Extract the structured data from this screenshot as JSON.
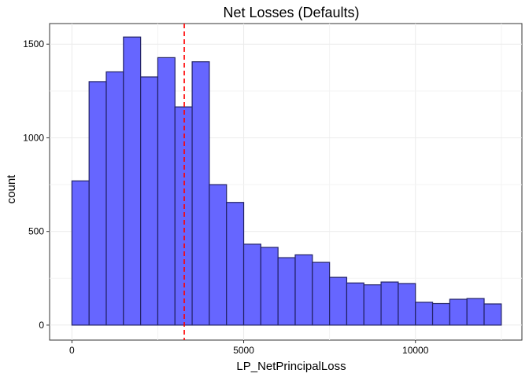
{
  "chart_data": {
    "type": "bar",
    "title": "Net Losses (Defaults)",
    "xlabel": "LP_NetPrincipalLoss",
    "ylabel": "count",
    "xlim": [
      -650,
      13100
    ],
    "ylim": [
      -80,
      1610
    ],
    "x_ticks": [
      0,
      5000,
      10000
    ],
    "x_tick_labels": [
      "0",
      "5000",
      "10000"
    ],
    "y_ticks": [
      0,
      500,
      1000,
      1500
    ],
    "y_tick_labels": [
      "0",
      "500",
      "1000",
      "1500"
    ],
    "bin_width": 500,
    "bins": [
      {
        "start": 0,
        "end": 500,
        "count": 770
      },
      {
        "start": 500,
        "end": 1000,
        "count": 1300
      },
      {
        "start": 1000,
        "end": 1500,
        "count": 1352
      },
      {
        "start": 1500,
        "end": 2000,
        "count": 1538
      },
      {
        "start": 2000,
        "end": 2500,
        "count": 1325
      },
      {
        "start": 2500,
        "end": 3000,
        "count": 1428
      },
      {
        "start": 3000,
        "end": 3500,
        "count": 1165
      },
      {
        "start": 3500,
        "end": 4000,
        "count": 1406
      },
      {
        "start": 4000,
        "end": 4500,
        "count": 750
      },
      {
        "start": 4500,
        "end": 5000,
        "count": 655
      },
      {
        "start": 5000,
        "end": 5500,
        "count": 432
      },
      {
        "start": 5500,
        "end": 6000,
        "count": 415
      },
      {
        "start": 6000,
        "end": 6500,
        "count": 360
      },
      {
        "start": 6500,
        "end": 7000,
        "count": 375
      },
      {
        "start": 7000,
        "end": 7500,
        "count": 335
      },
      {
        "start": 7500,
        "end": 8000,
        "count": 255
      },
      {
        "start": 8000,
        "end": 8500,
        "count": 225
      },
      {
        "start": 8500,
        "end": 9000,
        "count": 215
      },
      {
        "start": 9000,
        "end": 9500,
        "count": 230
      },
      {
        "start": 9500,
        "end": 10000,
        "count": 222
      },
      {
        "start": 10000,
        "end": 10500,
        "count": 122
      },
      {
        "start": 10500,
        "end": 11000,
        "count": 115
      },
      {
        "start": 11000,
        "end": 11500,
        "count": 138
      },
      {
        "start": 11500,
        "end": 12000,
        "count": 142
      },
      {
        "start": 12000,
        "end": 12500,
        "count": 113
      }
    ],
    "reference_line": {
      "x": 3270,
      "style": "dashed",
      "color": "#ff0000"
    },
    "bar_fill": "#6666ff",
    "bar_stroke": "#222266",
    "grid": true,
    "legend": "none"
  }
}
